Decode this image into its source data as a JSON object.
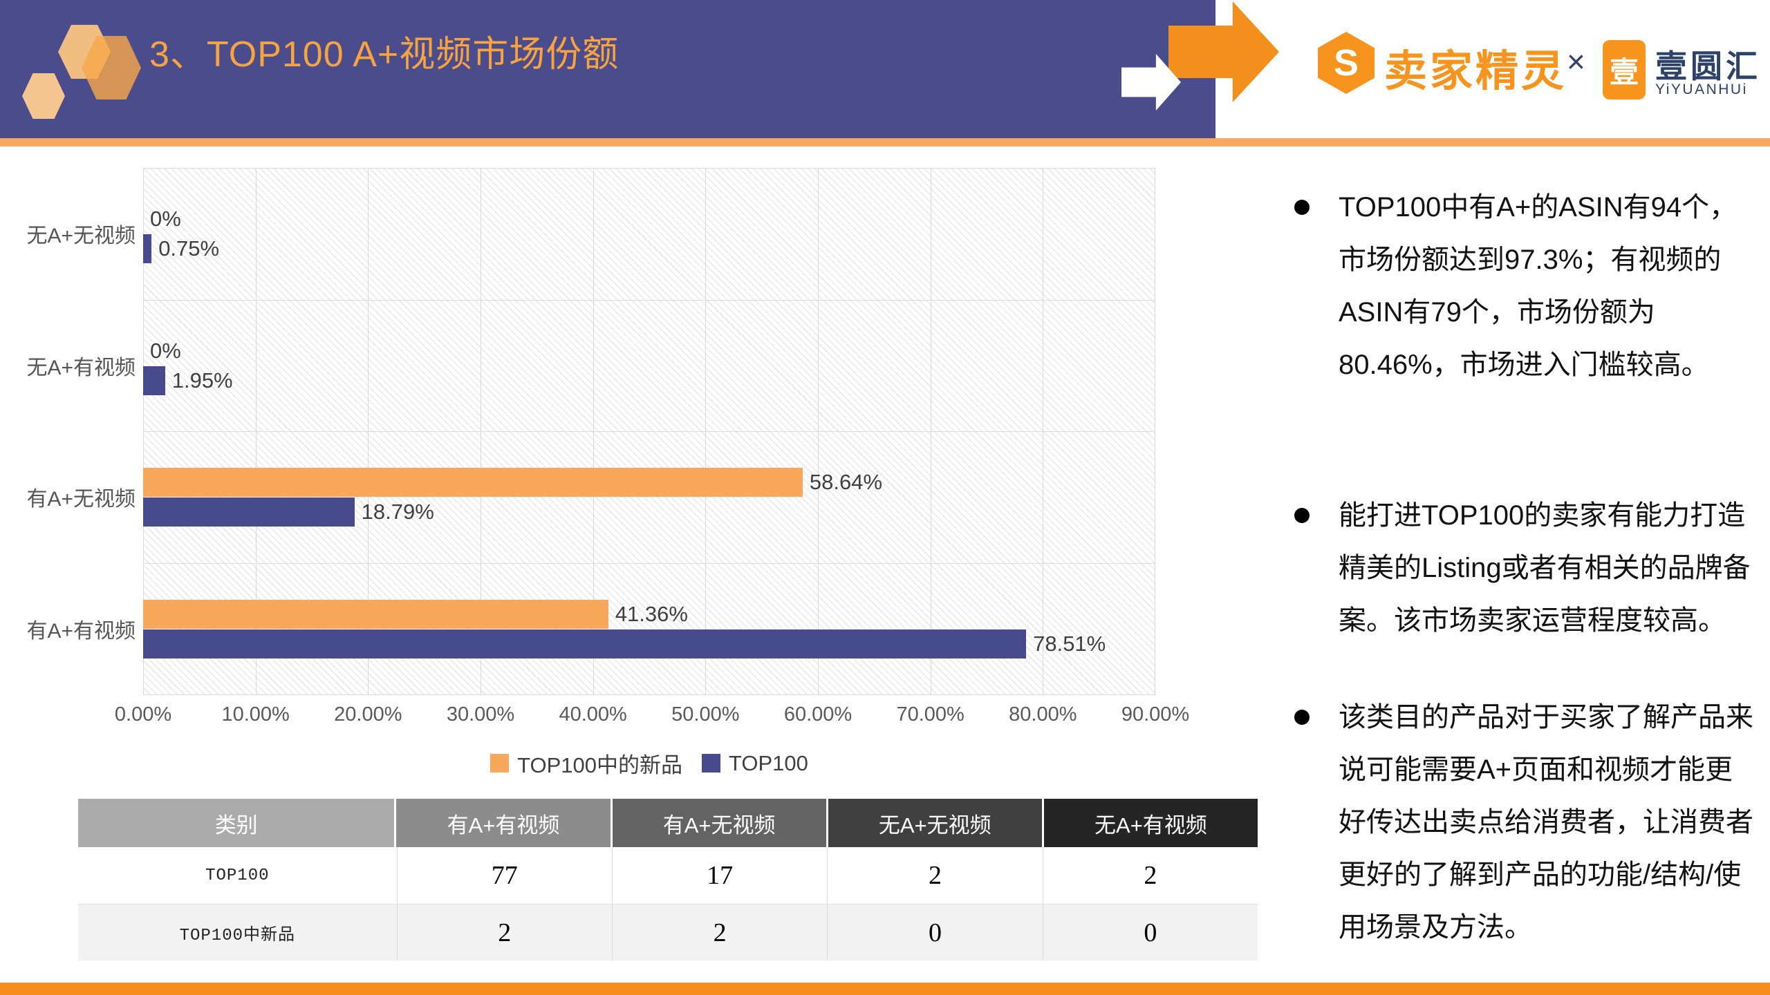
{
  "header": {
    "title": "3、TOP100 A+视频市场份额",
    "s_mark": "S",
    "brand_cn": "卖家精灵",
    "brand_x": "×",
    "yi_badge": "壹",
    "yi_name": "壹圆汇",
    "yi_latin": "YiYUANHUi"
  },
  "chart_data": {
    "type": "bar",
    "orientation": "horizontal",
    "categories": [
      "无A+无视频",
      "无A+有视频",
      "有A+无视频",
      "有A+有视频"
    ],
    "series": [
      {
        "name": "TOP100中的新品",
        "color": "#F9A75B",
        "values": [
          0,
          0,
          58.64,
          41.36
        ],
        "labels": [
          "0%",
          "0%",
          "58.64%",
          "41.36%"
        ]
      },
      {
        "name": "TOP100",
        "color": "#474A8D",
        "values": [
          0.75,
          1.95,
          18.79,
          78.51
        ],
        "labels": [
          "0.75%",
          "1.95%",
          "18.79%",
          "78.51%"
        ]
      }
    ],
    "xlim": [
      0,
      90
    ],
    "ticks": [
      "0.00%",
      "10.00%",
      "20.00%",
      "30.00%",
      "40.00%",
      "50.00%",
      "60.00%",
      "70.00%",
      "80.00%",
      "90.00%"
    ],
    "grid": true,
    "legend_position": "bottom",
    "plot_background": "diagonal-hatch"
  },
  "table": {
    "headers": [
      "类别",
      "有A+有视频",
      "有A+无视频",
      "无A+无视频",
      "无A+有视频"
    ],
    "header_colors": [
      "#ABABAB",
      "#8C8C8C",
      "#636363",
      "#404040",
      "#252525"
    ],
    "rows": [
      [
        "TOP100",
        "77",
        "17",
        "2",
        "2"
      ],
      [
        "TOP100中新品",
        "2",
        "2",
        "0",
        "0"
      ]
    ]
  },
  "bullets": [
    "TOP100中有A+的ASIN有94个，市场份额达到97.3%；有视频的ASIN有79个，市场份额为80.46%，市场进入门槛较高。",
    "能打进TOP100的卖家有能力打造精美的Listing或者有相关的品牌备案。该市场卖家运营程度较高。",
    "该类目的产品对于买家了解产品来说可能需要A+页面和视频才能更好传达出卖点给消费者，让消费者更好的了解到产品的功能/结构/使用场景及方法。"
  ],
  "colors": {
    "header_band": "#4A4C8C",
    "accent_line": "#F9A963",
    "title_orange": "#F7A33F",
    "arrow_orange": "#F3901D",
    "footer_orange": "#F78C1F",
    "bar_orange": "#F9A75B",
    "bar_purple": "#474A8D"
  }
}
